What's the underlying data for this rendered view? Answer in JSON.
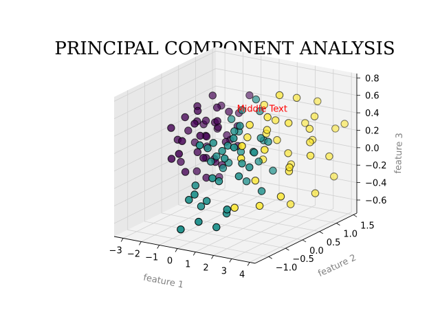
{
  "chart_data": {
    "type": "scatter",
    "projection": "3d",
    "title": "PRINCIPAL COMPONENT ANALYSIS",
    "xlabel": "feature 1",
    "ylabel": "feature 2",
    "zlabel": "feature 3",
    "xlim": [
      -3.5,
      4.3
    ],
    "ylim": [
      -1.4,
      1.6
    ],
    "zlim": [
      -0.75,
      0.85
    ],
    "xticks": [
      "−3",
      "−2",
      "−1",
      "0",
      "1",
      "2",
      "3",
      "4"
    ],
    "yticks": [
      "−1.0",
      "−0.5",
      "0.0",
      "0.5",
      "1.0",
      "1.5"
    ],
    "zticks": [
      "−0.6",
      "−0.4",
      "−0.2",
      "0.0",
      "0.2",
      "0.4",
      "0.6",
      "0.8"
    ],
    "grid": true,
    "colors": {
      "class_0": "#440154",
      "class_1": "#21918c",
      "class_2": "#fde725",
      "edge": "#000000",
      "annotation": "#ff0000",
      "axis_label": "#808080"
    },
    "annotation": {
      "text": "Middle Text",
      "x": 1.5,
      "y": 0.3,
      "z": 0.55
    },
    "series": [
      {
        "values": [
          [
            -3.0,
            0.3,
            -0.2
          ],
          [
            -2.8,
            0.1,
            0.1
          ],
          [
            -2.6,
            0.5,
            0.0
          ],
          [
            -2.6,
            -0.2,
            0.3
          ],
          [
            -2.5,
            0.8,
            -0.1
          ],
          [
            -2.4,
            0.2,
            0.2
          ],
          [
            -2.3,
            0.4,
            -0.3
          ],
          [
            -2.2,
            -0.4,
            0.0
          ],
          [
            -2.3,
            0.6,
            0.2
          ],
          [
            -2.2,
            0.0,
            0.4
          ],
          [
            -2.1,
            0.3,
            0.3
          ],
          [
            -2.1,
            0.9,
            0.1
          ],
          [
            -2.0,
            -0.1,
            -0.2
          ],
          [
            -2.0,
            0.5,
            0.1
          ],
          [
            -1.9,
            0.2,
            0.5
          ],
          [
            -1.9,
            0.7,
            -0.2
          ],
          [
            -1.8,
            -0.3,
            0.2
          ],
          [
            -1.8,
            0.4,
            0.3
          ],
          [
            -1.7,
            0.1,
            0.0
          ],
          [
            -1.7,
            0.8,
            0.4
          ],
          [
            -1.6,
            0.3,
            -0.1
          ],
          [
            -1.6,
            -0.5,
            0.1
          ],
          [
            -1.5,
            0.6,
            0.2
          ],
          [
            -1.5,
            0.0,
            0.5
          ],
          [
            -1.4,
            0.2,
            -0.3
          ],
          [
            -1.4,
            0.9,
            0.0
          ],
          [
            -1.3,
            0.4,
            0.3
          ],
          [
            -1.3,
            -0.2,
            0.4
          ],
          [
            -1.2,
            0.7,
            0.1
          ],
          [
            -1.2,
            0.1,
            0.2
          ],
          [
            -1.1,
            0.5,
            -0.2
          ],
          [
            -1.1,
            1.0,
            0.3
          ],
          [
            -1.0,
            0.3,
            0.5
          ],
          [
            -1.0,
            -0.1,
            0.0
          ],
          [
            -0.9,
            0.6,
            0.4
          ],
          [
            -0.9,
            0.2,
            -0.1
          ],
          [
            -0.8,
            0.8,
            0.2
          ],
          [
            -0.8,
            -0.3,
            0.3
          ],
          [
            -0.7,
            0.4,
            0.1
          ],
          [
            -0.7,
            1.1,
            0.5
          ],
          [
            -0.6,
            0.1,
            0.4
          ],
          [
            -0.6,
            0.7,
            0.0
          ],
          [
            -2.0,
            0.9,
            -0.45
          ],
          [
            -1.8,
            0.6,
            0.55
          ]
        ]
      },
      {
        "values": [
          [
            -0.5,
            -0.6,
            -0.2
          ],
          [
            -0.4,
            -0.2,
            0.0
          ],
          [
            -0.3,
            -0.9,
            -0.3
          ],
          [
            -0.2,
            -0.4,
            0.2
          ],
          [
            -0.1,
            0.0,
            -0.1
          ],
          [
            0.0,
            -0.7,
            -0.4
          ],
          [
            0.1,
            -0.3,
            0.1
          ],
          [
            0.2,
            -1.0,
            -0.2
          ],
          [
            0.3,
            -0.5,
            0.3
          ],
          [
            0.4,
            -0.1,
            0.0
          ],
          [
            0.5,
            -0.8,
            -0.3
          ],
          [
            0.6,
            -0.4,
            0.2
          ],
          [
            0.7,
            0.1,
            0.1
          ],
          [
            0.8,
            -0.6,
            -0.1
          ],
          [
            0.9,
            -0.2,
            0.4
          ],
          [
            1.0,
            -0.9,
            0.0
          ],
          [
            1.1,
            -0.5,
            0.3
          ],
          [
            1.2,
            0.0,
            -0.2
          ],
          [
            1.3,
            -0.7,
            0.2
          ],
          [
            1.4,
            -0.3,
            0.5
          ],
          [
            1.5,
            0.2,
            0.0
          ],
          [
            1.6,
            -0.8,
            -0.4
          ],
          [
            1.7,
            -0.4,
            0.1
          ],
          [
            1.8,
            0.1,
            0.3
          ],
          [
            1.9,
            -0.6,
            0.0
          ],
          [
            2.0,
            -0.2,
            0.2
          ],
          [
            2.1,
            0.3,
            -0.1
          ],
          [
            2.2,
            -0.9,
            0.4
          ],
          [
            2.3,
            -0.5,
            0.1
          ],
          [
            2.4,
            0.0,
            0.3
          ],
          [
            0.2,
            0.4,
            0.5
          ],
          [
            0.6,
            0.6,
            0.6
          ],
          [
            1.0,
            0.5,
            0.5
          ],
          [
            0.4,
            0.2,
            0.3
          ],
          [
            1.4,
            0.4,
            0.2
          ],
          [
            -0.2,
            0.3,
            0.4
          ],
          [
            0.8,
            -1.2,
            -0.45
          ],
          [
            1.6,
            -1.1,
            -0.5
          ],
          [
            0.0,
            -1.3,
            -0.55
          ],
          [
            2.0,
            -1.0,
            -0.3
          ],
          [
            2.6,
            -0.3,
            -0.2
          ],
          [
            1.2,
            0.2,
            0.1
          ],
          [
            0.3,
            -0.9,
            0.35
          ],
          [
            1.8,
            -0.7,
            0.45
          ]
        ]
      },
      {
        "values": [
          [
            0.5,
            0.4,
            0.2
          ],
          [
            0.8,
            0.7,
            -0.1
          ],
          [
            1.0,
            0.2,
            0.4
          ],
          [
            1.2,
            0.9,
            0.1
          ],
          [
            1.4,
            0.5,
            0.3
          ],
          [
            1.6,
            1.1,
            -0.2
          ],
          [
            1.8,
            0.3,
            0.5
          ],
          [
            2.0,
            0.8,
            0.0
          ],
          [
            2.2,
            0.0,
            0.2
          ],
          [
            2.4,
            0.6,
            0.4
          ],
          [
            2.6,
            1.2,
            0.1
          ],
          [
            2.8,
            0.4,
            -0.1
          ],
          [
            3.0,
            0.9,
            0.3
          ],
          [
            3.2,
            0.2,
            0.0
          ],
          [
            3.4,
            0.7,
            0.2
          ],
          [
            3.6,
            1.3,
            -0.3
          ],
          [
            3.8,
            0.5,
            0.1
          ],
          [
            2.1,
            1.0,
            0.6
          ],
          [
            2.5,
            1.4,
            0.5
          ],
          [
            1.9,
            0.6,
            0.7
          ],
          [
            2.9,
            1.1,
            0.4
          ],
          [
            3.3,
            1.5,
            0.2
          ],
          [
            1.5,
            0.1,
            -0.2
          ],
          [
            2.3,
            -0.2,
            -0.4
          ],
          [
            3.1,
            0.0,
            -0.3
          ],
          [
            2.7,
            0.5,
            -0.5
          ],
          [
            3.5,
            0.8,
            -0.4
          ],
          [
            1.3,
            0.8,
            0.35
          ],
          [
            2.0,
            1.3,
            0.25
          ],
          [
            0.9,
            0.0,
            0.05
          ],
          [
            1.1,
            -0.3,
            -0.45
          ],
          [
            0.6,
            0.9,
            0.15
          ],
          [
            3.9,
            1.0,
            0.0
          ],
          [
            4.0,
            1.4,
            0.3
          ],
          [
            1.7,
            -0.4,
            0.3
          ],
          [
            0.3,
            1.0,
            0.45
          ]
        ]
      }
    ]
  }
}
